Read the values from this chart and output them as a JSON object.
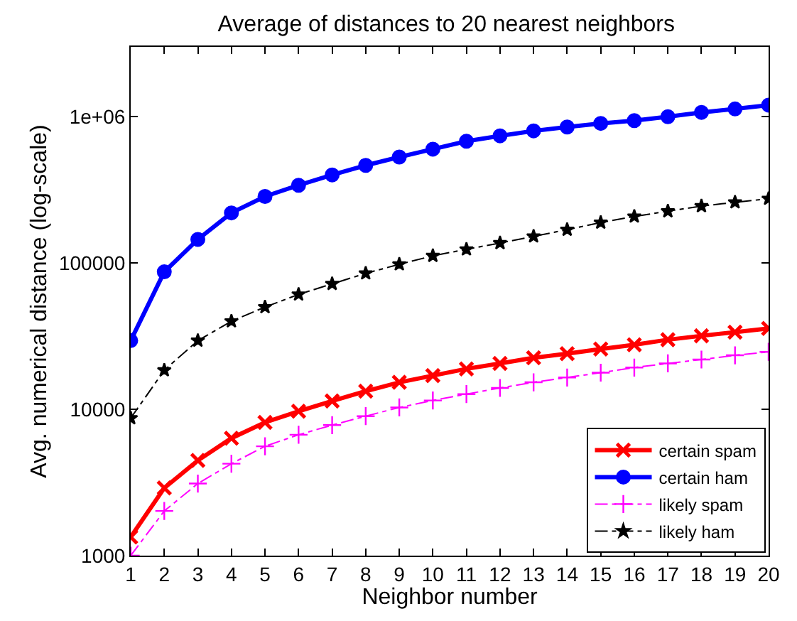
{
  "chart_data": {
    "type": "line",
    "title": "Average of distances to 20 nearest neighbors",
    "xlabel": "Neighbor number",
    "ylabel": "Avg. numerical distance (log-scale)",
    "x": [
      1,
      2,
      3,
      4,
      5,
      6,
      7,
      8,
      9,
      10,
      11,
      12,
      13,
      14,
      15,
      16,
      17,
      18,
      19,
      20
    ],
    "log": "y",
    "xlim": [
      1,
      20
    ],
    "xticks": [
      1,
      2,
      3,
      4,
      5,
      6,
      7,
      8,
      9,
      10,
      11,
      12,
      13,
      14,
      15,
      16,
      17,
      18,
      19,
      20
    ],
    "ylim": [
      1000,
      3000000
    ],
    "yticks": [
      1000,
      10000,
      100000,
      {
        "value": 1000000,
        "label": "1e+06"
      }
    ],
    "legend": "bottom right",
    "series": [
      {
        "name": "certain spam",
        "color": "#ff0000",
        "marker": "x",
        "line_style": "solid",
        "values": [
          1340,
          2900,
          4470,
          6350,
          8140,
          9700,
          11400,
          13300,
          15300,
          17000,
          18900,
          20600,
          22500,
          24000,
          25800,
          27600,
          29900,
          31800,
          33700,
          35700
        ]
      },
      {
        "name": "certain ham",
        "color": "#0000ff",
        "marker": "circle",
        "line_style": "solid",
        "values": [
          29500,
          87000,
          145000,
          220000,
          285000,
          340000,
          400000,
          465000,
          530000,
          600000,
          680000,
          740000,
          800000,
          850000,
          900000,
          940000,
          1000000,
          1070000,
          1130000,
          1200000
        ]
      },
      {
        "name": "likely spam",
        "color": "#ff00ff",
        "marker": "cross",
        "line_style": "dashdot",
        "values": [
          1000,
          2020,
          3110,
          4250,
          5590,
          6700,
          7800,
          8980,
          10300,
          11500,
          12700,
          14000,
          15300,
          16500,
          17800,
          19300,
          20600,
          21900,
          23400,
          24700
        ]
      },
      {
        "name": "likely ham",
        "color": "#000000",
        "marker": "star",
        "line_style": "dashdot",
        "values": [
          8700,
          18500,
          29500,
          40000,
          50000,
          61000,
          72000,
          85000,
          98000,
          112000,
          124000,
          137000,
          152000,
          169000,
          189000,
          208000,
          226000,
          245000,
          260000,
          275000
        ]
      }
    ]
  }
}
